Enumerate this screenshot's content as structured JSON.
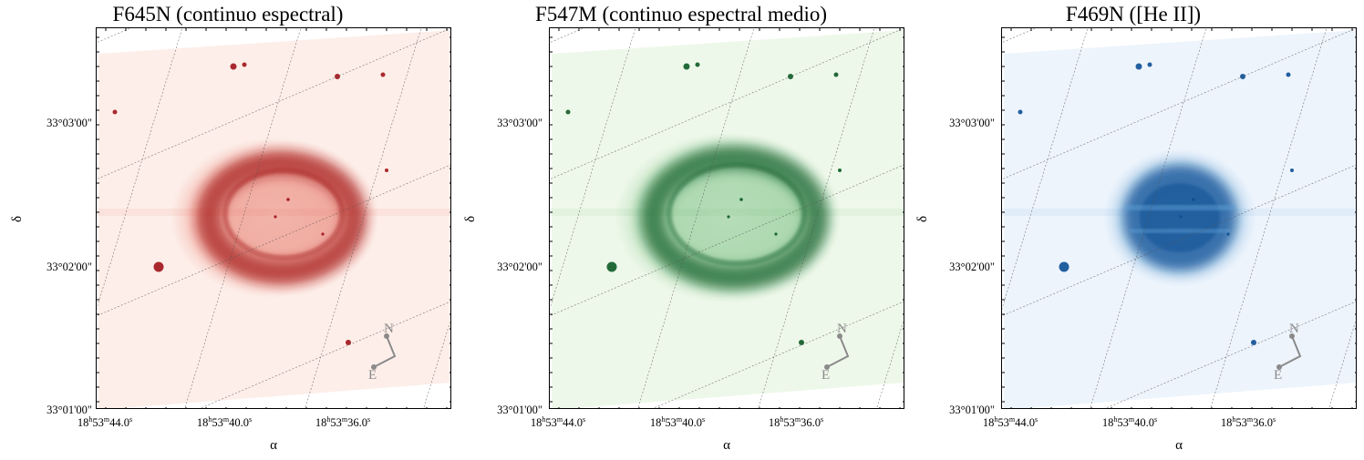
{
  "panels": [
    {
      "id": "f645n",
      "title": "F645N (continuo espectral)",
      "colormap": "reds",
      "bg": "#fdeee9",
      "ring": "#a01218",
      "halo": "#e25a48",
      "ylabel": "δ",
      "xlabel": "α",
      "yticks": [
        "33°03'00\"",
        "33°02'00\"",
        "33°01'00\""
      ],
      "xticks": [
        "18h53m44.0s",
        "18h53m40.0s",
        "18h53m36.0s"
      ],
      "compass": {
        "north": "N",
        "east": "E"
      }
    },
    {
      "id": "f547m",
      "title": "F547M (continuo espectral medio)",
      "colormap": "greens",
      "bg": "#eef8ea",
      "ring": "#0b5a25",
      "halo": "#5fb36a",
      "ylabel": "δ",
      "xlabel": "α",
      "yticks": [
        "33°03'00\"",
        "33°02'00\"",
        "33°01'00\""
      ],
      "xticks": [
        "18h53m44.0s",
        "18h53m40.0s",
        "18h53m36.0s"
      ],
      "compass": {
        "north": "N",
        "east": "E"
      }
    },
    {
      "id": "f469n",
      "title": "F469N ([He II])",
      "colormap": "blues",
      "bg": "#edf4fc",
      "ring": "#0b4f95",
      "halo": "#5b9fd4",
      "ylabel": "δ",
      "xlabel": "α",
      "yticks": [
        "33°03'00\"",
        "33°02'00\"",
        "33°01'00\""
      ],
      "xticks": [
        "18h53m44.0s",
        "18h53m40.0s",
        "18h53m36.0s"
      ],
      "compass": {
        "north": "N",
        "east": "E"
      }
    }
  ]
}
